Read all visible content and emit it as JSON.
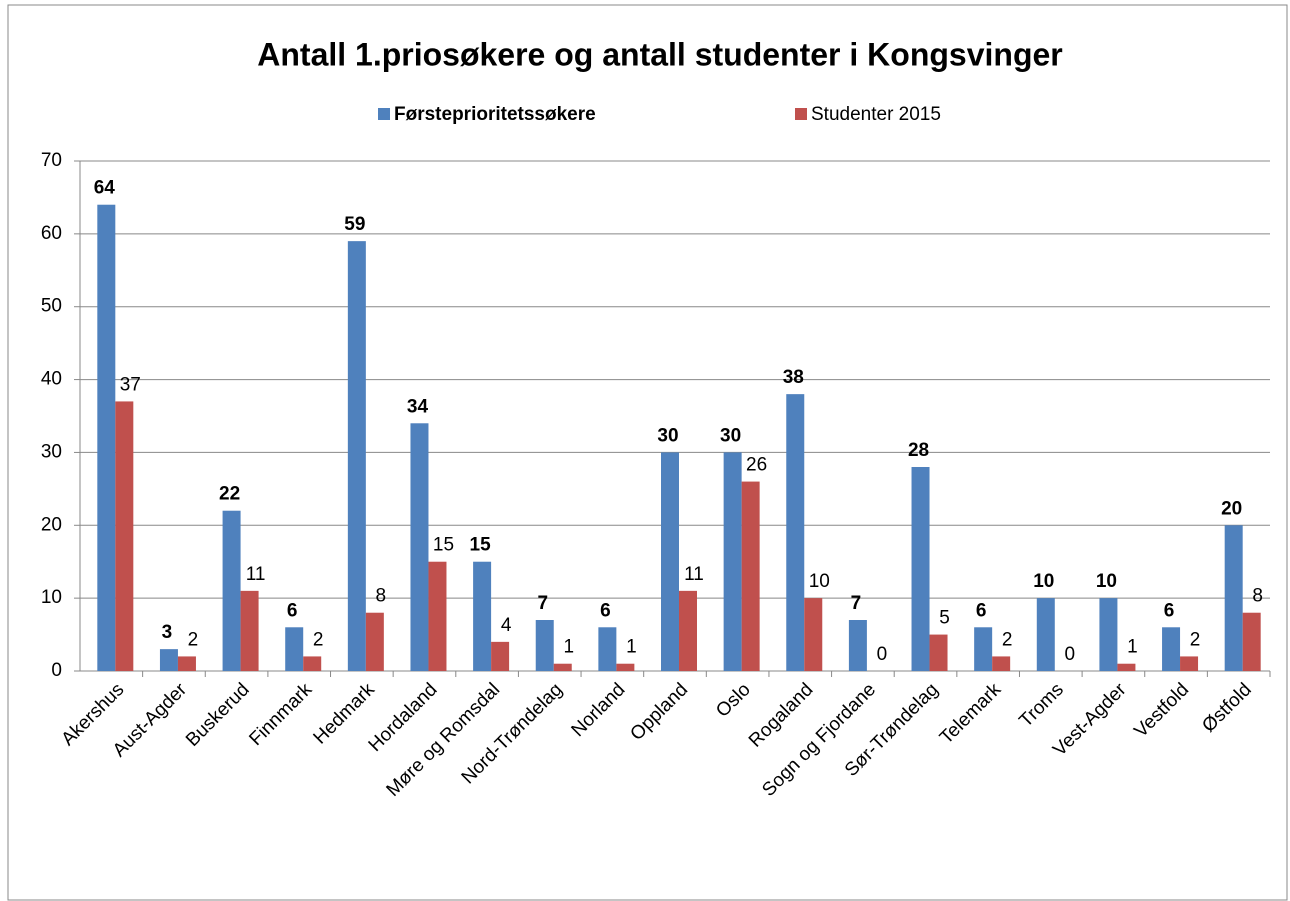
{
  "chart_data": {
    "type": "bar",
    "title": "Antall 1.priosøkere og antall studenter i  Kongsvinger",
    "categories": [
      "Akershus",
      "Aust-Agder",
      "Buskerud",
      "Finnmark",
      "Hedmark",
      "Hordaland",
      "Møre og Romsdal",
      "Nord-Trøndelag",
      "Norland",
      "Oppland",
      "Oslo",
      "Rogaland",
      "Sogn og Fjordane",
      "Sør-Trøndelag",
      "Telemark",
      "Troms",
      "Vest-Agder",
      "Vestfold",
      "Østfold"
    ],
    "series": [
      {
        "name": "Førsteprioritetssøkere",
        "color": "#4f81bd",
        "values": [
          64,
          3,
          22,
          6,
          59,
          34,
          15,
          7,
          6,
          30,
          30,
          38,
          7,
          28,
          6,
          10,
          10,
          6,
          20
        ]
      },
      {
        "name": "Studenter 2015",
        "color": "#c0504d",
        "values": [
          37,
          2,
          11,
          2,
          8,
          15,
          4,
          1,
          1,
          11,
          26,
          10,
          0,
          5,
          2,
          0,
          1,
          2,
          8
        ]
      }
    ],
    "ylim": [
      0,
      70
    ],
    "yticks": [
      0,
      10,
      20,
      30,
      40,
      50,
      60,
      70
    ],
    "grid": true,
    "legend": "top"
  }
}
